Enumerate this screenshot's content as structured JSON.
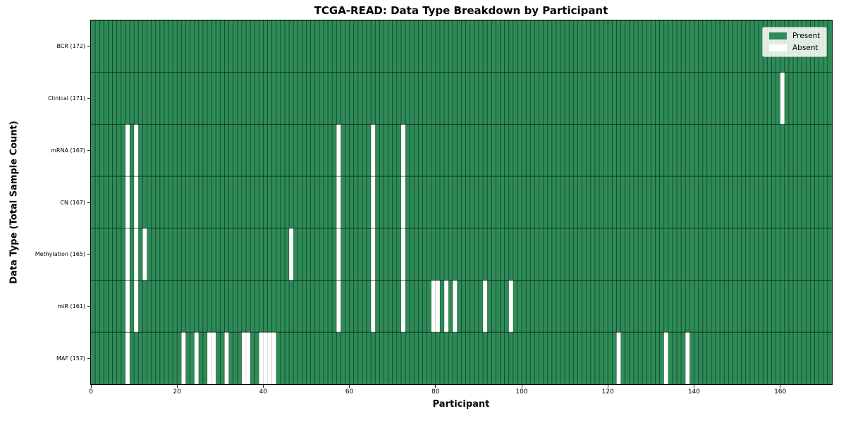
{
  "colors": {
    "present": "#2e8b57",
    "absent": "#ffffff",
    "cell_edge_strong": "rgba(0,0,0,0.40)",
    "cell_edge_faint": "rgba(0,0,0,0.12)",
    "row_divider": "rgba(0,0,0,0.55)",
    "plot_border": "#000000",
    "legend_border": "#b3b3b3"
  },
  "chart_data": {
    "type": "heatmap",
    "title": "TCGA-READ: Data Type Breakdown by Participant",
    "xlabel": "Participant",
    "ylabel": "Data Type (Total Sample Count)",
    "x_range": [
      0,
      172
    ],
    "x_ticks": [
      0,
      20,
      40,
      60,
      80,
      100,
      120,
      140,
      160
    ],
    "n_participants": 172,
    "grid": true,
    "legend": [
      "Present",
      "Absent"
    ],
    "legend_position": "upper right",
    "rows": [
      {
        "data_type": "BCR",
        "label": "BCR (172)",
        "total": 172,
        "absent_participants": []
      },
      {
        "data_type": "Clinical",
        "label": "Clinical (171)",
        "total": 171,
        "absent_participants": [
          160
        ]
      },
      {
        "data_type": "mRNA",
        "label": "mRNA (167)",
        "total": 167,
        "absent_participants": [
          8,
          10,
          57,
          65,
          72
        ]
      },
      {
        "data_type": "CN",
        "label": "CN (167)",
        "total": 167,
        "absent_participants": [
          8,
          10,
          57,
          65,
          72
        ]
      },
      {
        "data_type": "Methylation",
        "label": "Methylation (165)",
        "total": 165,
        "absent_participants": [
          8,
          10,
          12,
          46,
          57,
          65,
          72
        ]
      },
      {
        "data_type": "miR",
        "label": "miR (161)",
        "total": 161,
        "absent_participants": [
          8,
          10,
          57,
          65,
          72,
          79,
          80,
          82,
          84,
          91,
          97
        ]
      },
      {
        "data_type": "MAF",
        "label": "MAF (157)",
        "total": 157,
        "absent_participants": [
          8,
          21,
          24,
          27,
          28,
          31,
          35,
          36,
          39,
          40,
          41,
          42,
          122,
          133,
          138
        ]
      }
    ]
  }
}
